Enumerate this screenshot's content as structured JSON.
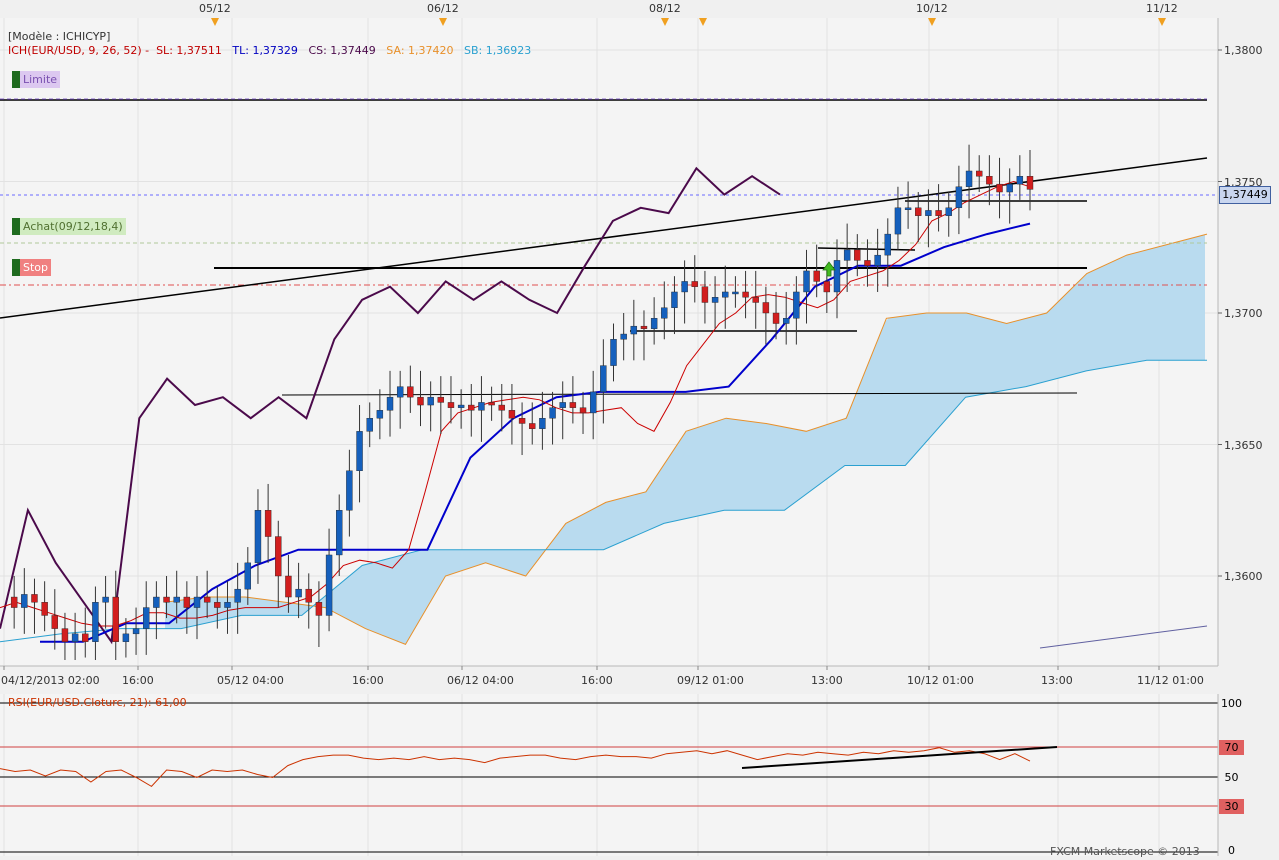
{
  "header": {
    "model_label": "[Modèle : ICHICYP]",
    "ich_prefix": "ICH(EUR/USD, 9, 26, 52) -",
    "sl": "SL: 1,37511",
    "tl": "TL: 1,37329",
    "cs": "CS: 1,37449",
    "sa": "SA: 1,37420",
    "sb": "SB: 1,36923"
  },
  "orders": {
    "limite": "Limite",
    "achat": "Achat(09/12,18,4)",
    "stop": "Stop"
  },
  "top_dates": [
    "05/12",
    "06/12",
    "08/12",
    "10/12",
    "11/12"
  ],
  "x_ticks": [
    "04/12/2013 02:00",
    "16:00",
    "05/12 04:00",
    "16:00",
    "06/12 04:00",
    "16:00",
    "09/12 01:00",
    "13:00",
    "10/12 01:00",
    "13:00",
    "11/12 01:00"
  ],
  "y_ticks": [
    "1,3800",
    "1,3750",
    "1,3700",
    "1,3650",
    "1,3600"
  ],
  "current_price": "1,37449",
  "rsi": {
    "label": "RSI(EUR/USD.Cloturc, 21): 61,00",
    "levels": [
      "100",
      "70",
      "50",
      "30",
      "0"
    ]
  },
  "watermark": "FXCM Marketscope © 2013",
  "colors": {
    "bull": "#1560bd",
    "bear": "#d21e1e",
    "kijun": "#0000cc",
    "tenkan": "#cc0000",
    "chikou": "#4b0a4b",
    "cloud": "#b9dbef",
    "senkou_a": "#e8902a"
  },
  "chart_data": [
    {
      "type": "candlestick",
      "title": "EUR/USD",
      "ylim": [
        1.3573,
        1.381
      ],
      "grid": true,
      "x_ticks": [
        "04/12/2013 02:00",
        "16:00",
        "05/12 04:00",
        "16:00",
        "06/12 04:00",
        "16:00",
        "09/12 01:00",
        "13:00",
        "10/12 01:00",
        "13:00",
        "11/12 01:00"
      ],
      "close_path": [
        1.3592,
        1.3588,
        1.3593,
        1.359,
        1.3585,
        1.358,
        1.3575,
        1.3578,
        1.3575,
        1.359,
        1.3592,
        1.3575,
        1.3578,
        1.358,
        1.3588,
        1.3592,
        1.359,
        1.3592,
        1.3588,
        1.3592,
        1.359,
        1.3588,
        1.359,
        1.3595,
        1.3605,
        1.3625,
        1.3615,
        1.36,
        1.3592,
        1.3595,
        1.359,
        1.3585,
        1.3608,
        1.3625,
        1.364,
        1.3655,
        1.366,
        1.3663,
        1.3668,
        1.3672,
        1.3668,
        1.3665,
        1.3668,
        1.3666,
        1.3664,
        1.3665,
        1.3663,
        1.3666,
        1.3665,
        1.3663,
        1.366,
        1.3658,
        1.3656,
        1.366,
        1.3664,
        1.3666,
        1.3664,
        1.3662,
        1.367,
        1.368,
        1.369,
        1.3692,
        1.3695,
        1.3694,
        1.3698,
        1.3702,
        1.3708,
        1.3712,
        1.371,
        1.3704,
        1.3706,
        1.3708,
        1.3708,
        1.3706,
        1.3704,
        1.37,
        1.3696,
        1.3698,
        1.3708,
        1.3716,
        1.3712,
        1.3708,
        1.372,
        1.3724,
        1.372,
        1.3718,
        1.3722,
        1.373,
        1.374,
        1.374,
        1.3737,
        1.3739,
        1.3737,
        1.374,
        1.3748,
        1.3754,
        1.3752,
        1.3749,
        1.3746,
        1.3749,
        1.3752,
        1.3747
      ],
      "tenkan": [
        1.3588,
        1.359,
        1.3588,
        1.3586,
        1.3584,
        1.3582,
        1.3581,
        1.3581,
        1.3583,
        1.3586,
        1.3586,
        1.3584,
        1.3584,
        1.3585,
        1.3587,
        1.3588,
        1.3588,
        1.3588,
        1.359,
        1.3592,
        1.3597,
        1.3604,
        1.3606,
        1.3605,
        1.3603,
        1.361,
        1.3632,
        1.3655,
        1.3662,
        1.3664,
        1.3666,
        1.3667,
        1.3668,
        1.3667,
        1.3664,
        1.3662,
        1.3662,
        1.3663,
        1.3664,
        1.3658,
        1.3655,
        1.3666,
        1.368,
        1.3688,
        1.3696,
        1.37,
        1.3706,
        1.3707,
        1.3706,
        1.3704,
        1.3702,
        1.3705,
        1.3712,
        1.3714,
        1.3716,
        1.372,
        1.3726,
        1.3735,
        1.3738,
        1.3742,
        1.3745,
        1.3748,
        1.375,
        1.3748
      ],
      "kijun": [
        1.3575,
        1.3575,
        1.3582,
        1.3582,
        1.3595,
        1.3604,
        1.361,
        1.361,
        1.361,
        1.361,
        1.3645,
        1.366,
        1.3668,
        1.367,
        1.367,
        1.367,
        1.3672,
        1.369,
        1.371,
        1.3718,
        1.3718,
        1.3725,
        1.373,
        1.3734
      ],
      "chikou": [
        1.358,
        1.3625,
        1.3605,
        1.359,
        1.3575,
        1.366,
        1.3675,
        1.3665,
        1.3668,
        1.366,
        1.3668,
        1.366,
        1.369,
        1.3705,
        1.371,
        1.37,
        1.3712,
        1.3705,
        1.3712,
        1.3705,
        1.37,
        1.3718,
        1.3735,
        1.374,
        1.3738,
        1.3755,
        1.3745,
        1.3752,
        1.3745
      ],
      "senkou_a": [
        1.359,
        1.3592,
        1.3592,
        1.359,
        1.3588,
        1.358,
        1.3574,
        1.36,
        1.3605,
        1.36,
        1.362,
        1.3628,
        1.3632,
        1.3655,
        1.366,
        1.3658,
        1.3655,
        1.366,
        1.3698,
        1.37,
        1.37,
        1.3696,
        1.37,
        1.3715,
        1.3722,
        1.3726,
        1.373
      ],
      "senkou_b": [
        1.3575,
        1.3578,
        1.358,
        1.358,
        1.3585,
        1.3585,
        1.3604,
        1.361,
        1.361,
        1.361,
        1.361,
        1.362,
        1.3625,
        1.3625,
        1.3642,
        1.3642,
        1.3668,
        1.3672,
        1.3678,
        1.3682,
        1.3682
      ]
    },
    {
      "type": "line",
      "title": "RSI(EUR/USD.Cloturc, 21): 61,00",
      "ylim": [
        0,
        100
      ],
      "y_ticks": [
        100,
        70,
        50,
        30,
        0
      ],
      "values": [
        56,
        54,
        55,
        51,
        55,
        54,
        47,
        54,
        55,
        50,
        44,
        55,
        54,
        50,
        55,
        54,
        55,
        52,
        50,
        58,
        62,
        64,
        65,
        65,
        63,
        62,
        63,
        62,
        64,
        62,
        63,
        62,
        60,
        63,
        64,
        65,
        65,
        63,
        62,
        64,
        65,
        64,
        64,
        63,
        66,
        67,
        68,
        66,
        68,
        65,
        62,
        64,
        66,
        65,
        67,
        66,
        65,
        67,
        66,
        68,
        67,
        68,
        70,
        67,
        68,
        66,
        62,
        66,
        61
      ]
    }
  ]
}
